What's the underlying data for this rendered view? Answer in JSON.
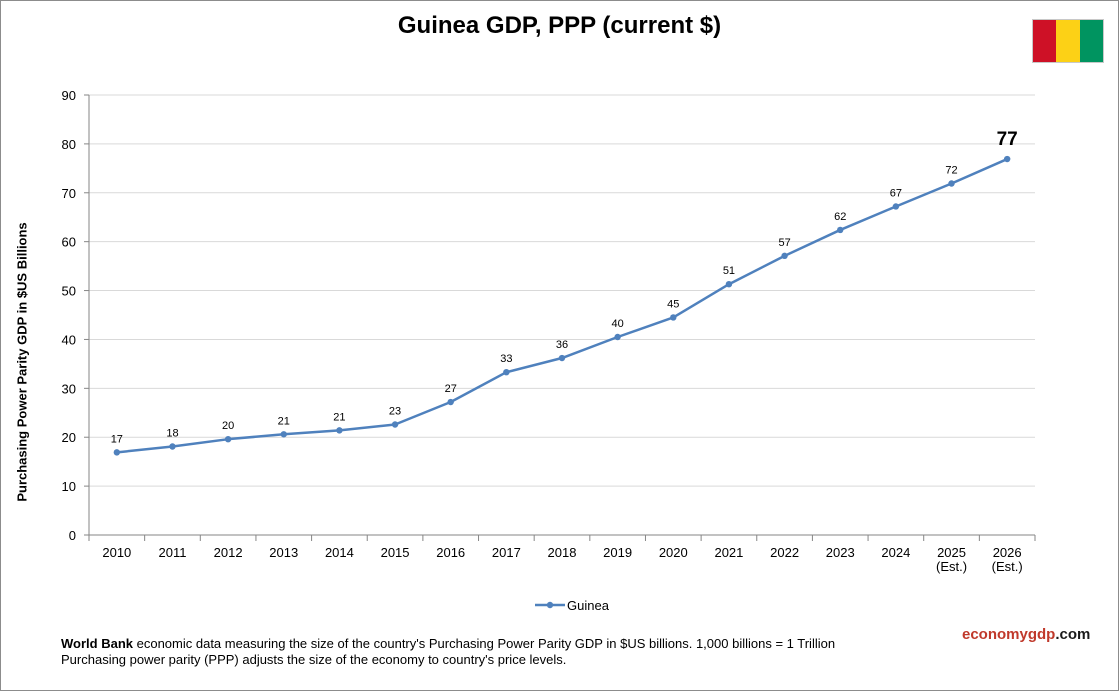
{
  "chart_data": {
    "type": "line",
    "title": "Guinea GDP, PPP (current $)",
    "ylabel": "Purchasing Power Parity GDP in $US Billions",
    "xlabel": "",
    "categories": [
      [
        "2010"
      ],
      [
        "2011"
      ],
      [
        "2012"
      ],
      [
        "2013"
      ],
      [
        "2014"
      ],
      [
        "2015"
      ],
      [
        "2016"
      ],
      [
        "2017"
      ],
      [
        "2018"
      ],
      [
        "2019"
      ],
      [
        "2020"
      ],
      [
        "2021"
      ],
      [
        "2022"
      ],
      [
        "2023"
      ],
      [
        "2024"
      ],
      [
        "2025",
        "(Est.)"
      ],
      [
        "2026",
        "(Est.)"
      ]
    ],
    "series": [
      {
        "name": "Guinea",
        "values": [
          16.9,
          18.1,
          19.6,
          20.6,
          21.4,
          22.6,
          27.2,
          33.3,
          36.2,
          40.5,
          44.5,
          51.3,
          57.1,
          62.4,
          67.2,
          71.9,
          76.9
        ],
        "labels": [
          "17",
          "18",
          "20",
          "21",
          "21",
          "23",
          "27",
          "33",
          "36",
          "40",
          "45",
          "51",
          "57",
          "62",
          "67",
          "72",
          "77"
        ],
        "color": "#4f81bd"
      }
    ],
    "ylim": [
      0,
      90
    ],
    "yticks": [
      0,
      10,
      20,
      30,
      40,
      50,
      60,
      70,
      80,
      90
    ],
    "grid": true,
    "legend": "bottom-center"
  },
  "flag_colors": [
    "#ce1126",
    "#fcd116",
    "#009460"
  ],
  "footnote": {
    "bold": "World Bank",
    "line1": " economic data measuring the size of the country's Purchasing Power Parity GDP in $US billions. 1,000 billions = 1 Trillion",
    "line2": "Purchasing power parity (PPP) adjusts the size of the economy to country's price levels."
  },
  "brand": {
    "part1": "economygdp",
    "part2": ".com",
    "color1": "#c0392b",
    "color2": "#1a1a1a"
  }
}
